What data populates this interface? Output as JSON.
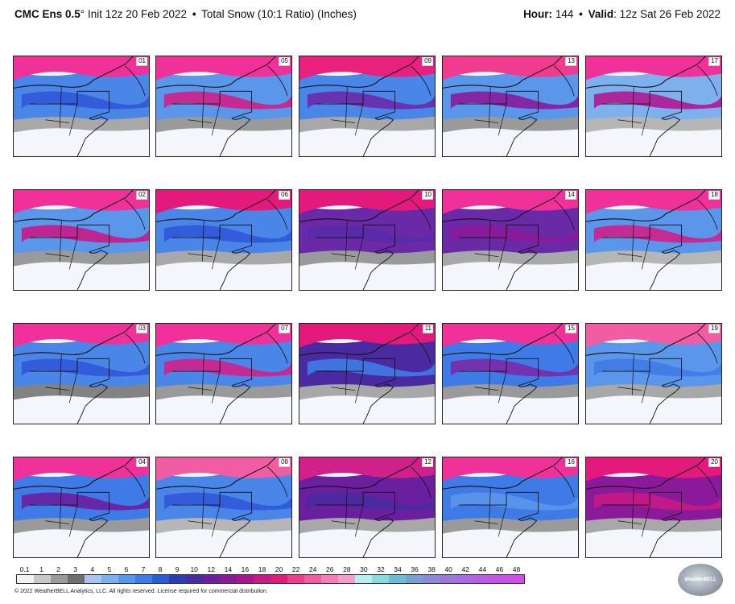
{
  "header": {
    "model": "CMC Ens 0.5",
    "degree": "°",
    "init": "Init 12z 20 Feb 2022",
    "bullet": "•",
    "product": "Total Snow (10:1 Ratio) (Inches)",
    "hour_label": "Hour:",
    "hour_value": "144",
    "valid_label": "Valid",
    "valid_value": ": 12z Sat 26 Feb 2022"
  },
  "panels": [
    {
      "member": "01",
      "style": "a"
    },
    {
      "member": "05",
      "style": "b"
    },
    {
      "member": "09",
      "style": "c"
    },
    {
      "member": "13",
      "style": "d"
    },
    {
      "member": "17",
      "style": "e"
    },
    {
      "member": "02",
      "style": "f"
    },
    {
      "member": "06",
      "style": "g"
    },
    {
      "member": "10",
      "style": "h"
    },
    {
      "member": "14",
      "style": "i"
    },
    {
      "member": "18",
      "style": "j"
    },
    {
      "member": "03",
      "style": "k"
    },
    {
      "member": "07",
      "style": "l"
    },
    {
      "member": "11",
      "style": "m"
    },
    {
      "member": "15",
      "style": "n"
    },
    {
      "member": "19",
      "style": "o"
    },
    {
      "member": "04",
      "style": "p"
    },
    {
      "member": "08",
      "style": "q"
    },
    {
      "member": "12",
      "style": "r"
    },
    {
      "member": "16",
      "style": "s"
    },
    {
      "member": "20",
      "style": "t"
    }
  ],
  "colorbar": {
    "labels": [
      "0.1",
      "1",
      "2",
      "3",
      "4",
      "5",
      "6",
      "7",
      "8",
      "9",
      "10",
      "12",
      "14",
      "16",
      "18",
      "20",
      "22",
      "24",
      "26",
      "28",
      "30",
      "32",
      "34",
      "36",
      "38",
      "40",
      "42",
      "44",
      "46",
      "48"
    ],
    "colors": [
      "#f2f2f2",
      "#c8c8c8",
      "#9a9a9a",
      "#6e6e6e",
      "#a9c6f2",
      "#7fb0ee",
      "#5a96ea",
      "#3f7be6",
      "#2a5ed6",
      "#2a3fb4",
      "#4a2aa0",
      "#6a1f9e",
      "#8a1a9a",
      "#a8168f",
      "#c81a86",
      "#e3197c",
      "#f03b8e",
      "#f25ca2",
      "#f27db8",
      "#f29fcc",
      "#b4f0f0",
      "#8ad8e0",
      "#6cbcd0",
      "#7aa0d0",
      "#8a8ad6",
      "#9a78dc",
      "#aa6ae0",
      "#b85ee4",
      "#c654e8",
      "#d24eec"
    ]
  },
  "legend": {
    "chart_data": {
      "type": "heatmap",
      "title": "Total Snow (10:1 Ratio) (Inches)",
      "scale_ticks": [
        0.1,
        1,
        2,
        3,
        4,
        5,
        6,
        7,
        8,
        9,
        10,
        12,
        14,
        16,
        18,
        20,
        22,
        24,
        26,
        28,
        30,
        32,
        34,
        36,
        38,
        40,
        42,
        44,
        46,
        48
      ]
    }
  },
  "footer": {
    "copyright": "© 2022 WeatherBELL Analytics, LLC. All rights reserved. License required for commercial distribution.",
    "logo_text": "WeatherBELL"
  }
}
